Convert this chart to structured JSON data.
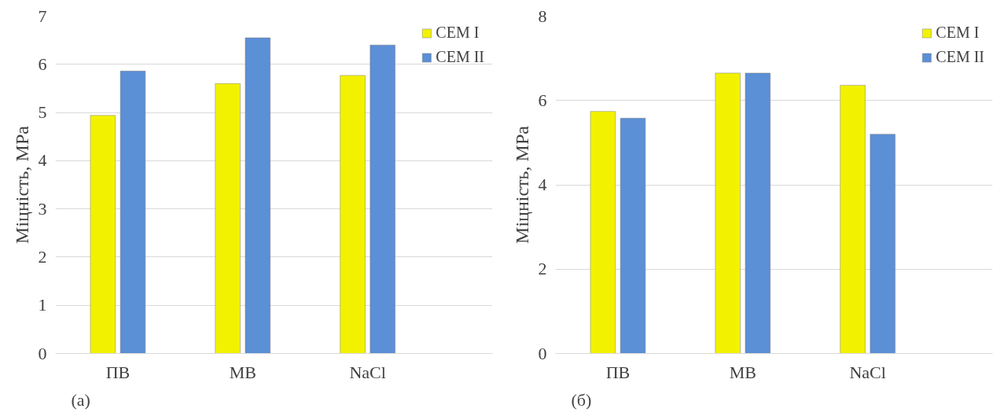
{
  "chart_data": [
    {
      "type": "bar",
      "ylabel": "Міцність, МРа",
      "categories": [
        "ПВ",
        "МВ",
        "NaCl"
      ],
      "series": [
        {
          "name": "CEM I",
          "color": "#f2f200",
          "values": [
            4.94,
            5.6,
            5.77
          ]
        },
        {
          "name": "CEM II",
          "color": "#5b8fd6",
          "values": [
            5.86,
            6.55,
            6.4
          ]
        }
      ],
      "ylim": [
        0,
        7
      ],
      "yticks": [
        0,
        1,
        2,
        3,
        4,
        5,
        6,
        7
      ],
      "grid": "y",
      "legend": "top right",
      "annotations": [
        "(a)"
      ]
    },
    {
      "type": "bar",
      "ylabel": "Міцність, МРа",
      "categories": [
        "ПВ",
        "МВ",
        "NaCl"
      ],
      "series": [
        {
          "name": "CEM I",
          "color": "#f2f200",
          "values": [
            5.74,
            6.65,
            6.36
          ]
        },
        {
          "name": "CEM II",
          "color": "#5b8fd6",
          "values": [
            5.58,
            6.65,
            5.2
          ]
        }
      ],
      "ylim": [
        0,
        8
      ],
      "yticks": [
        0,
        2,
        4,
        6,
        8
      ],
      "grid": "y",
      "legend": "top right",
      "annotations": [
        "(б)"
      ]
    }
  ]
}
